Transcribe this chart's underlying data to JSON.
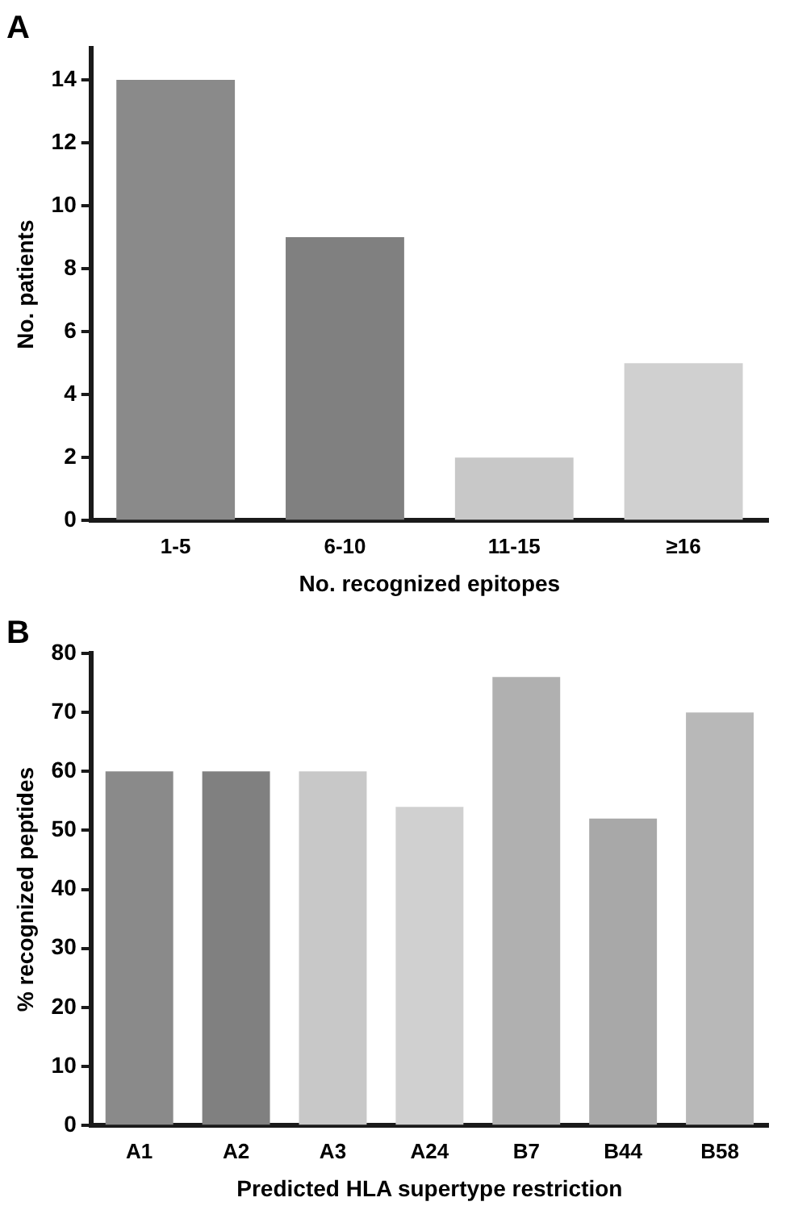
{
  "chart_data": [
    {
      "type": "bar",
      "title": "A",
      "xlabel": "No. recognized epitopes",
      "ylabel": "No. patients",
      "categories": [
        "1-5",
        "6-10",
        "11-15",
        "≥16"
      ],
      "values": [
        14,
        9,
        2,
        5
      ],
      "colors": [
        "#8a8a8a",
        "#808080",
        "#c8c8c8",
        "#d0d0d0"
      ],
      "ylim": [
        0,
        15
      ],
      "yticks": [
        0,
        2,
        4,
        6,
        8,
        10,
        12,
        14
      ],
      "grid": false,
      "legend": false
    },
    {
      "type": "bar",
      "title": "B",
      "xlabel": "Predicted HLA supertype restriction",
      "ylabel": "% recognized peptides",
      "categories": [
        "A1",
        "A2",
        "A3",
        "A24",
        "B7",
        "B44",
        "B58"
      ],
      "values": [
        60,
        60,
        60,
        54,
        76,
        52,
        70
      ],
      "colors": [
        "#8a8a8a",
        "#808080",
        "#c8c8c8",
        "#d0d0d0",
        "#b0b0b0",
        "#a8a8a8",
        "#b8b8b8"
      ],
      "ylim": [
        0,
        80
      ],
      "yticks": [
        0,
        10,
        20,
        30,
        40,
        50,
        60,
        70,
        80
      ],
      "grid": false,
      "legend": false
    }
  ]
}
